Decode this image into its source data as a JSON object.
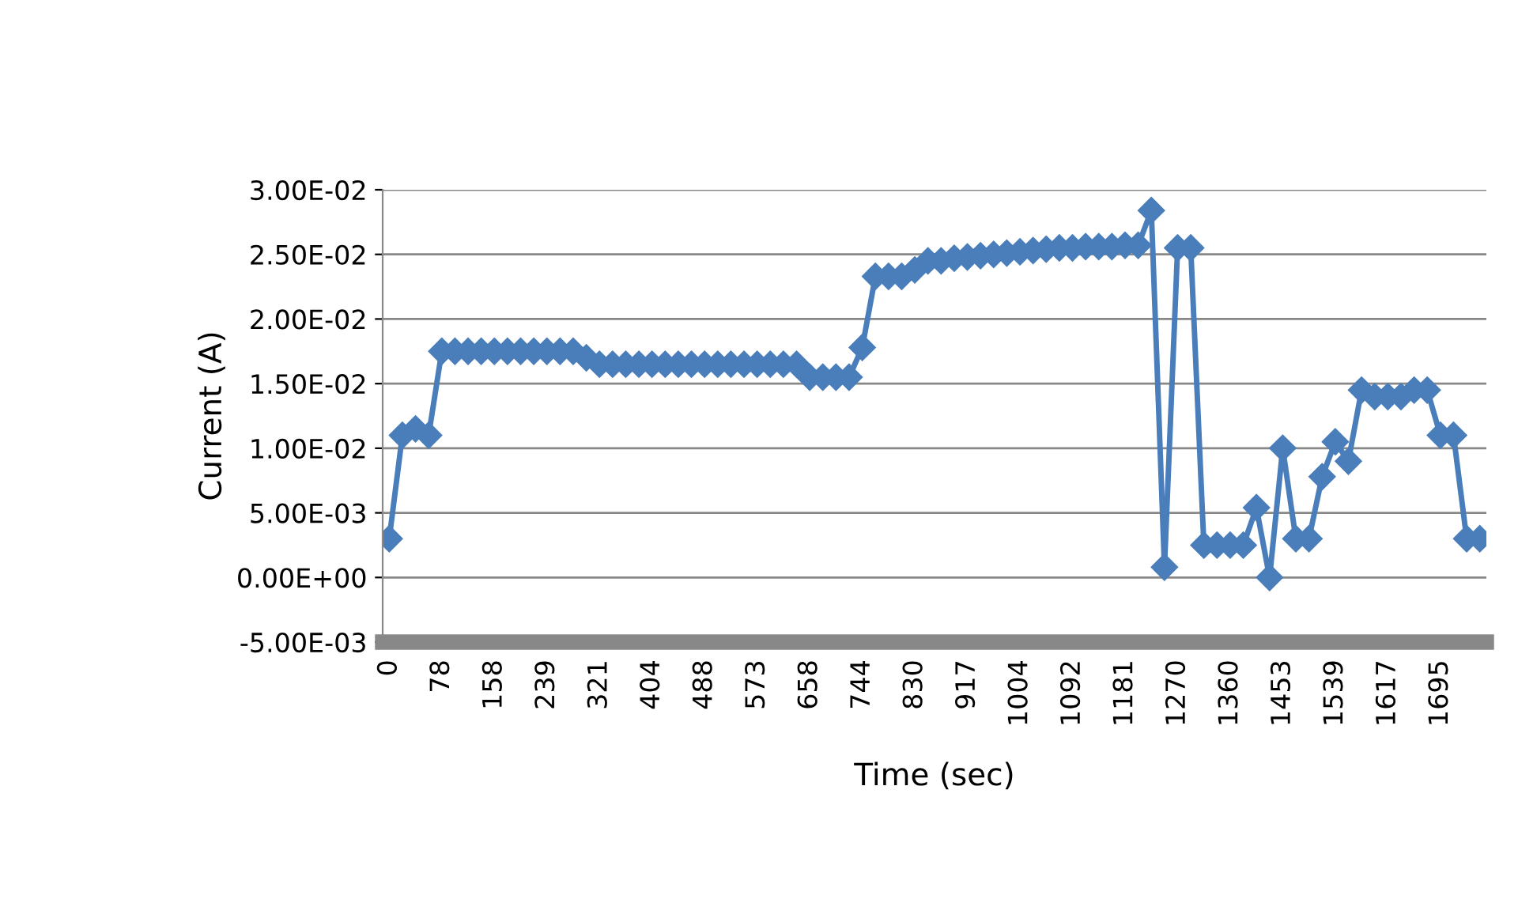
{
  "chart_data": {
    "type": "line",
    "xlabel": "Time (sec)",
    "ylabel": "Current (A)",
    "categories": [
      "0",
      null,
      null,
      null,
      "78",
      null,
      null,
      null,
      "158",
      null,
      null,
      null,
      "239",
      null,
      null,
      null,
      "321",
      null,
      null,
      null,
      "404",
      null,
      null,
      null,
      "488",
      null,
      null,
      null,
      "573",
      null,
      null,
      null,
      "658",
      null,
      null,
      null,
      "744",
      null,
      null,
      null,
      "830",
      null,
      null,
      null,
      "917",
      null,
      null,
      null,
      "1004",
      null,
      null,
      null,
      "1092",
      null,
      null,
      null,
      "1181",
      null,
      null,
      null,
      "1270",
      null,
      null,
      null,
      "1360",
      null,
      null,
      null,
      "1453",
      null,
      null,
      null,
      "1539",
      null,
      null,
      null,
      "1617",
      null,
      null,
      null,
      "1695",
      null,
      null,
      null
    ],
    "series": [
      {
        "color": "#4a7ebb",
        "values": [
          0.003,
          0.011,
          0.0115,
          0.011,
          0.0175,
          0.0175,
          0.0175,
          0.0175,
          0.0175,
          0.0175,
          0.0175,
          0.0175,
          0.0175,
          0.0175,
          0.0175,
          0.017,
          0.0165,
          0.0165,
          0.0165,
          0.0165,
          0.0165,
          0.0165,
          0.0165,
          0.0165,
          0.0165,
          0.0165,
          0.0165,
          0.0165,
          0.0165,
          0.0165,
          0.0165,
          0.0165,
          0.0155,
          0.0155,
          0.0155,
          0.0155,
          0.0178,
          0.0233,
          0.0233,
          0.0233,
          0.0238,
          0.0245,
          0.0245,
          0.0247,
          0.0248,
          0.0249,
          0.025,
          0.0251,
          0.0252,
          0.0253,
          0.0254,
          0.0255,
          0.0255,
          0.0256,
          0.0256,
          0.0256,
          0.0257,
          0.0257,
          0.0284,
          0.0008,
          0.0255,
          0.0255,
          0.0025,
          0.0025,
          0.0025,
          0.0025,
          0.0054,
          0.0,
          0.01,
          0.003,
          0.003,
          0.0078,
          0.0105,
          0.009,
          0.0145,
          0.014,
          0.014,
          0.014,
          0.0145,
          0.0145,
          0.011,
          0.011,
          0.003,
          0.003
        ]
      }
    ],
    "ylim": [
      -0.005,
      0.03
    ],
    "yticks": [
      {
        "value": -0.005,
        "label": "-5.00E-03"
      },
      {
        "value": 0.0,
        "label": "0.00E+00"
      },
      {
        "value": 0.005,
        "label": "5.00E-03"
      },
      {
        "value": 0.01,
        "label": "1.00E-02"
      },
      {
        "value": 0.015,
        "label": "1.50E-02"
      },
      {
        "value": 0.02,
        "label": "2.00E-02"
      },
      {
        "value": 0.025,
        "label": "2.50E-02"
      },
      {
        "value": 0.03,
        "label": "3.00E-02"
      }
    ],
    "grid": "y",
    "marker": "diamond",
    "line_style": "solid"
  }
}
